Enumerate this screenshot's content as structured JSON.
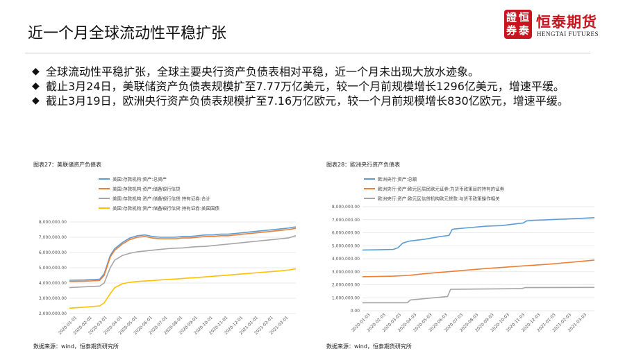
{
  "page": {
    "title": "近一个月全球流动性平稳扩张",
    "brand_cn": "恒泰期货",
    "brand_en": "HENGTAI FUTURES",
    "seal_chars": [
      "證",
      "恒",
      "券",
      "泰"
    ]
  },
  "bullets": [
    "全球流动性平稳扩张，全球主要央行资产负债表相对平稳，近一个月未出现大放水迹象。",
    "截止3月24日，美联储资产负债表规模扩至7.77万亿美元，较一个月前规模增长1296亿美元，增速平缓。",
    "截止3月19日，欧洲央行资产负债表规模扩至7.16万亿欧元，较一个月前规模增长830亿欧元，增速平缓。"
  ],
  "colors": {
    "blue": "#5b9bd5",
    "orange": "#ed7d31",
    "gray": "#a5a5a5",
    "yellow": "#ffc000",
    "seal": "#c8141e"
  },
  "chart_data": [
    {
      "type": "line",
      "title": "图表27：美联储资产负债表",
      "source": "数据来源：wind，恒泰期货研究所",
      "ylim": [
        2000000,
        8000000
      ],
      "yticks": [
        "8,000,000.00",
        "7,000,000.00",
        "6,000,000.00",
        "5,000,000.00",
        "4,000,000.00",
        "3,000,000.00",
        "2,000,000.00"
      ],
      "yvalues": [
        8000000,
        7000000,
        6000000,
        5000000,
        4000000,
        3000000,
        2000000
      ],
      "xticks": [
        "2020-01-01",
        "2020-02-01",
        "2020-03-01",
        "2020-04-01",
        "2020-05-01",
        "2020-06-01",
        "2020-07-01",
        "2020-08-01",
        "2020-09-01",
        "2020-10-01",
        "2020-11-01",
        "2020-12-01",
        "2021-01-01",
        "2021-02-01",
        "2021-03-01"
      ],
      "xlim": [
        0,
        15
      ],
      "grid": true,
      "legend": "top-left",
      "series": [
        {
          "name": "美国:存款机构:资产:总资产",
          "color": "#5b9bd5",
          "x": [
            0,
            1,
            2,
            2.3,
            2.7,
            3,
            3.5,
            4,
            4.5,
            5,
            5.5,
            6,
            6.5,
            7,
            7.5,
            8,
            8.5,
            9,
            9.5,
            10,
            10.5,
            11,
            11.5,
            12,
            12.5,
            13,
            13.5,
            14,
            14.5,
            15
          ],
          "y": [
            4180000,
            4200000,
            4250000,
            4600000,
            5800000,
            6250000,
            6650000,
            6950000,
            7100000,
            7150000,
            7050000,
            7000000,
            7000000,
            7000000,
            7050000,
            7050000,
            7100000,
            7150000,
            7150000,
            7200000,
            7200000,
            7250000,
            7300000,
            7350000,
            7400000,
            7450000,
            7500000,
            7550000,
            7600000,
            7680000
          ]
        },
        {
          "name": "美国:存款机构:资产:储备银行信贷",
          "color": "#ed7d31",
          "x": [
            0,
            1,
            2,
            2.3,
            2.7,
            3,
            3.5,
            4,
            4.5,
            5,
            5.5,
            6,
            6.5,
            7,
            7.5,
            8,
            8.5,
            9,
            9.5,
            10,
            10.5,
            11,
            11.5,
            12,
            12.5,
            13,
            13.5,
            14,
            14.5,
            15
          ],
          "y": [
            4100000,
            4120000,
            4170000,
            4500000,
            5700000,
            6150000,
            6550000,
            6850000,
            7000000,
            7050000,
            6950000,
            6900000,
            6900000,
            6900000,
            6950000,
            6950000,
            7000000,
            7050000,
            7050000,
            7100000,
            7100000,
            7150000,
            7200000,
            7250000,
            7300000,
            7350000,
            7400000,
            7450000,
            7500000,
            7580000
          ]
        },
        {
          "name": "美国:存款机构:资产:储备银行信贷:持有证券:合计",
          "color": "#a5a5a5",
          "x": [
            0,
            1,
            2,
            2.3,
            2.7,
            3,
            3.5,
            4,
            4.5,
            5,
            5.5,
            6,
            6.5,
            7,
            7.5,
            8,
            8.5,
            9,
            9.5,
            10,
            10.5,
            11,
            11.5,
            12,
            12.5,
            13,
            13.5,
            14,
            14.5,
            15
          ],
          "y": [
            3700000,
            3750000,
            3800000,
            4000000,
            5000000,
            5500000,
            5800000,
            5950000,
            6050000,
            6100000,
            6150000,
            6200000,
            6250000,
            6280000,
            6300000,
            6350000,
            6380000,
            6400000,
            6450000,
            6500000,
            6550000,
            6600000,
            6650000,
            6700000,
            6750000,
            6800000,
            6850000,
            6900000,
            6950000,
            7100000
          ]
        },
        {
          "name": "美国:存款机构:资产:储备银行信贷:持有证券:美国国债",
          "color": "#ffc000",
          "x": [
            0,
            1,
            2,
            2.3,
            2.7,
            3,
            3.5,
            4,
            4.5,
            5,
            5.5,
            6,
            6.5,
            7,
            7.5,
            8,
            8.5,
            9,
            9.5,
            10,
            10.5,
            11,
            11.5,
            12,
            12.5,
            13,
            13.5,
            14,
            14.5,
            15
          ],
          "y": [
            2350000,
            2420000,
            2500000,
            2700000,
            3300000,
            3700000,
            3950000,
            4050000,
            4100000,
            4130000,
            4160000,
            4200000,
            4230000,
            4260000,
            4300000,
            4330000,
            4360000,
            4400000,
            4440000,
            4480000,
            4520000,
            4560000,
            4600000,
            4640000,
            4680000,
            4720000,
            4760000,
            4800000,
            4850000,
            4930000
          ]
        }
      ]
    },
    {
      "type": "line",
      "title": "图表28：欧洲央行资产负债表",
      "source": "数据来源：wind，恒泰期货研究所",
      "ylim": [
        0,
        8000000
      ],
      "yticks": [
        "8,000,000.00",
        "7,000,000.00",
        "6,000,000.00",
        "5,000,000.00",
        "4,000,000.00",
        "3,000,000.00",
        "2,000,000.00",
        "1,000,000.00",
        "0.00"
      ],
      "yvalues": [
        8000000,
        7000000,
        6000000,
        5000000,
        4000000,
        3000000,
        2000000,
        1000000,
        0
      ],
      "xticks": [
        "2020-01-03",
        "2020-02-03",
        "2020-03-03",
        "2020-04-03",
        "2020-05-03",
        "2020-06-03",
        "2020-07-03",
        "2020-08-03",
        "2020-09-03",
        "2020-10-03",
        "2020-11-03",
        "2020-12-03",
        "2021-01-03",
        "2021-02-03",
        "2021-03-03"
      ],
      "xlim": [
        0,
        15
      ],
      "grid": true,
      "legend": "top-left",
      "series": [
        {
          "name": "欧洲央行:资产:总额",
          "color": "#5b9bd5",
          "x": [
            0,
            1,
            2,
            2.3,
            2.6,
            3,
            4,
            5,
            5.6,
            5.8,
            6,
            7,
            8,
            9,
            10,
            10.4,
            10.6,
            11,
            12,
            13,
            14,
            15
          ],
          "y": [
            4670000,
            4690000,
            4720000,
            4850000,
            5200000,
            5350000,
            5500000,
            5700000,
            5800000,
            6250000,
            6300000,
            6400000,
            6500000,
            6550000,
            6700000,
            6750000,
            6900000,
            6950000,
            7000000,
            7050000,
            7100000,
            7160000
          ]
        },
        {
          "name": "欧洲央行:资产:欧元区居民欧元证券:为货币政策目的持有的证券",
          "color": "#ed7d31",
          "x": [
            0,
            1,
            2,
            3,
            4,
            5,
            6,
            7,
            8,
            9,
            10,
            11,
            12,
            13,
            14,
            15
          ],
          "y": [
            2620000,
            2640000,
            2660000,
            2720000,
            2850000,
            2950000,
            3050000,
            3150000,
            3250000,
            3330000,
            3420000,
            3500000,
            3580000,
            3680000,
            3780000,
            3900000
          ]
        },
        {
          "name": "欧洲央行:资产:欧元区信贷机构欧元贷款:与货币政策操作相关",
          "color": "#a5a5a5",
          "x": [
            0,
            2.9,
            3.1,
            5.5,
            5.7,
            10.3,
            10.5,
            15
          ],
          "y": [
            620000,
            620000,
            830000,
            1100000,
            1650000,
            1700000,
            1780000,
            1800000
          ]
        }
      ]
    }
  ]
}
